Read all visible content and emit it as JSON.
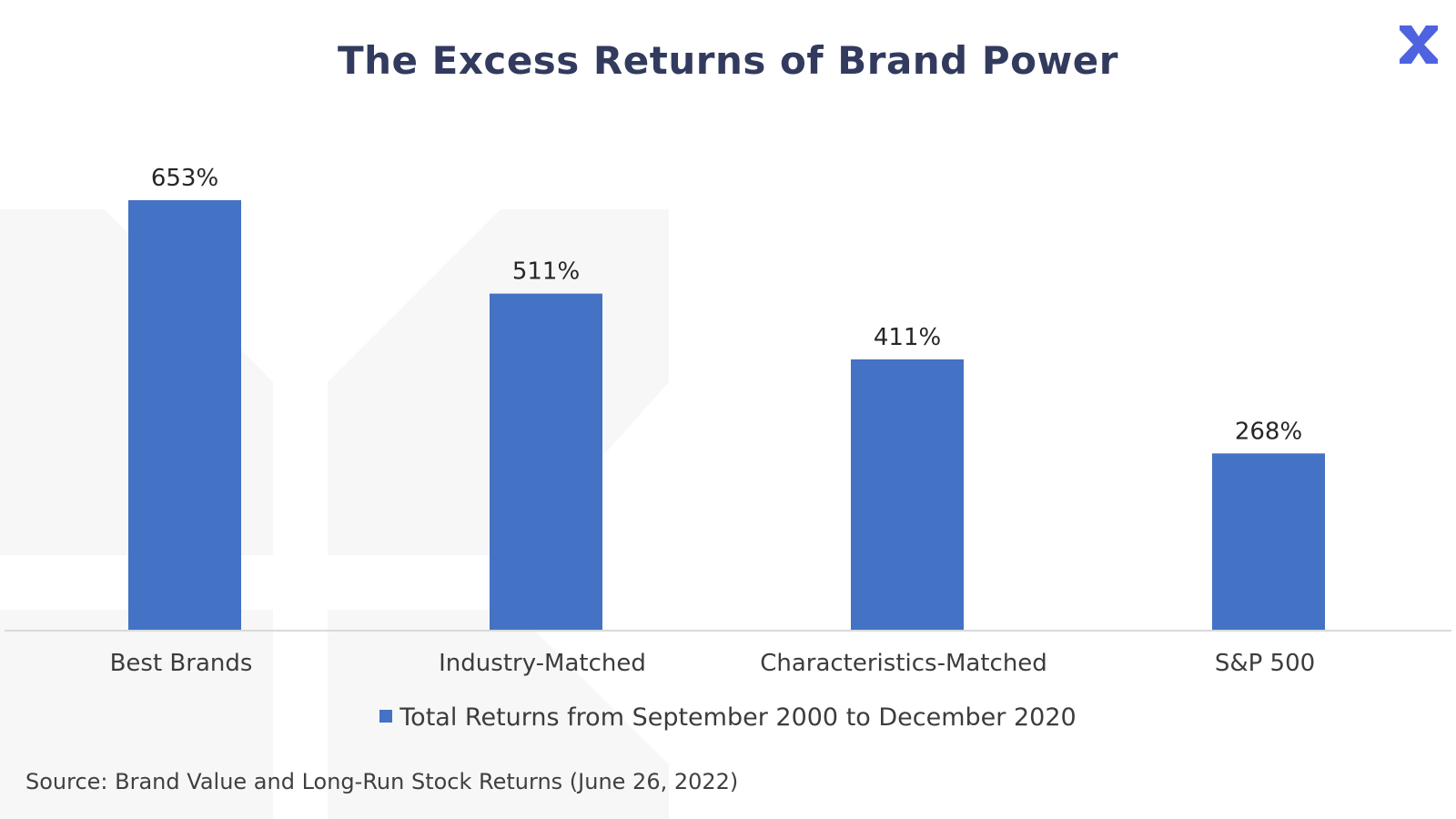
{
  "title": "The Excess Returns of Brand Power",
  "logo": {
    "icon": "x-logo-icon",
    "color": "#4F63E0"
  },
  "chart_data": {
    "type": "bar",
    "categories": [
      "Best Brands",
      "Industry-Matched",
      "Characteristics-Matched",
      "S&P 500"
    ],
    "series": [
      {
        "name": "Total Returns from September 2000 to December 2020",
        "values": [
          653,
          511,
          411,
          268
        ],
        "labels": [
          "653%",
          "511%",
          "411%",
          "268%"
        ]
      }
    ],
    "ylim": [
      0,
      700
    ],
    "grid": false,
    "legend": "bottom",
    "bar_color": "#4472C4"
  },
  "source": "Source: Brand Value and Long-Run Stock Returns (June 26, 2022)"
}
